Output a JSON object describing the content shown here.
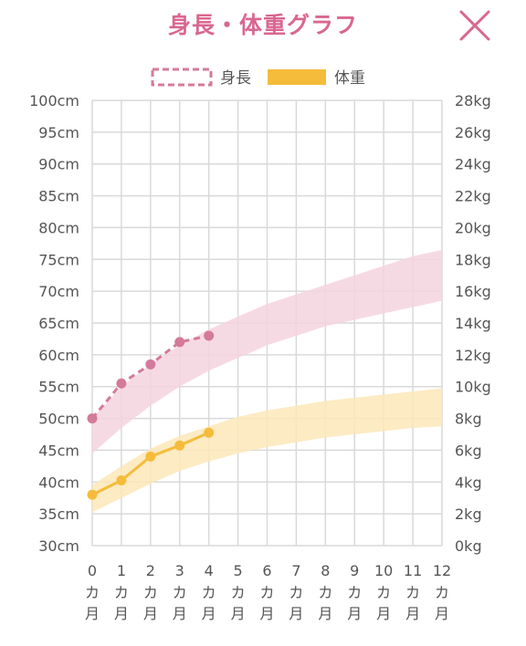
{
  "header": {
    "title": "身長・体重グラフ",
    "close_icon": "close-icon"
  },
  "colors": {
    "height": "#d47a9a",
    "height_band": "#f4d3de",
    "weight": "#f5bc3b",
    "weight_band": "#fbe8b9",
    "grid": "#d9d9d9",
    "title": "#d9678f"
  },
  "chart_data": {
    "type": "line",
    "x": [
      0,
      1,
      2,
      3,
      4,
      5,
      6,
      7,
      8,
      9,
      10,
      11,
      12
    ],
    "xticklabels": [
      "0",
      "1",
      "2",
      "3",
      "4",
      "5",
      "6",
      "7",
      "8",
      "9",
      "10",
      "11",
      "12"
    ],
    "xunit": [
      "カ",
      "月"
    ],
    "y_left": {
      "unit": "cm",
      "ylim": [
        30,
        100
      ],
      "ticks": [
        30,
        35,
        40,
        45,
        50,
        55,
        60,
        65,
        70,
        75,
        80,
        85,
        90,
        95,
        100
      ],
      "ticklabels": [
        "30cm",
        "35cm",
        "40cm",
        "45cm",
        "50cm",
        "55cm",
        "60cm",
        "65cm",
        "70cm",
        "75cm",
        "80cm",
        "85cm",
        "90cm",
        "95cm",
        "100cm"
      ]
    },
    "y_right": {
      "unit": "kg",
      "ylim": [
        0,
        28
      ],
      "ticks": [
        0,
        2,
        4,
        6,
        8,
        10,
        12,
        14,
        16,
        18,
        20,
        22,
        24,
        26,
        28
      ],
      "ticklabels": [
        "0kg",
        "2kg",
        "4kg",
        "6kg",
        "8kg",
        "10kg",
        "12kg",
        "14kg",
        "16kg",
        "18kg",
        "20kg",
        "22kg",
        "24kg",
        "26kg",
        "28kg"
      ]
    },
    "legend": {
      "placement": "top",
      "entries": [
        "身長",
        "体重"
      ]
    },
    "grid": true,
    "series": [
      {
        "name": "身長",
        "axis": "left",
        "style": "dashed",
        "x": [
          0,
          1,
          2,
          3,
          4
        ],
        "values": [
          50,
          55.5,
          58.5,
          62,
          63
        ]
      },
      {
        "name": "体重",
        "axis": "right",
        "style": "solid",
        "x": [
          0,
          1,
          2,
          3,
          4
        ],
        "values": [
          3.2,
          4.1,
          5.6,
          6.3,
          7.1
        ]
      }
    ],
    "bands": [
      {
        "series": "身長",
        "axis": "left",
        "x": [
          0,
          1,
          2,
          3,
          4,
          5,
          6,
          7,
          8,
          9,
          10,
          11,
          12
        ],
        "lower": [
          44.5,
          48.5,
          52,
          55,
          57.5,
          59.5,
          61.5,
          63,
          64.5,
          65.5,
          66.5,
          67.5,
          68.5
        ],
        "upper": [
          50,
          55,
          58.5,
          61.5,
          64,
          66,
          68,
          69.5,
          71,
          72.5,
          74,
          75.5,
          76.5
        ]
      },
      {
        "series": "体重",
        "axis": "right",
        "x": [
          0,
          1,
          2,
          3,
          4,
          5,
          6,
          7,
          8,
          9,
          10,
          11,
          12
        ],
        "lower": [
          2.1,
          3,
          3.9,
          4.7,
          5.3,
          5.8,
          6.2,
          6.5,
          6.8,
          7,
          7.2,
          7.4,
          7.5
        ],
        "upper": [
          3.8,
          5,
          6.1,
          6.9,
          7.5,
          8.1,
          8.5,
          8.8,
          9.1,
          9.3,
          9.5,
          9.7,
          9.9
        ]
      }
    ]
  }
}
